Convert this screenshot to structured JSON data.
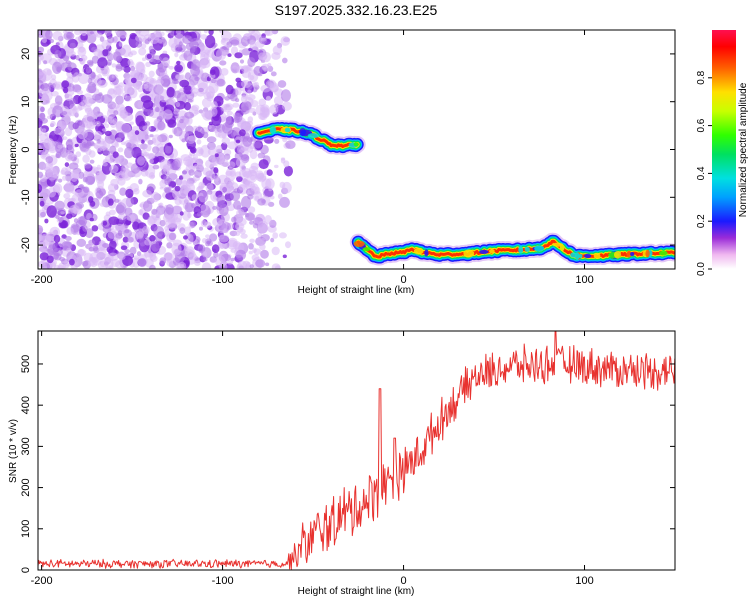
{
  "figure_title": "S197.2025.332.16.23.E25",
  "colors": {
    "speckle": "#8a3ddd",
    "snr_line": "#e8322f",
    "axis": "#000000",
    "background": "#ffffff"
  },
  "chart_data": [
    {
      "type": "heatmap",
      "name": "spectrogram",
      "xlabel": "Height of straight line (km)",
      "ylabel": "Frequency (Hz)",
      "xlim": [
        -202,
        150
      ],
      "ylim": [
        -25,
        25
      ],
      "xticks": [
        -200,
        -100,
        0,
        100
      ],
      "yticks": [
        -20,
        -10,
        0,
        10,
        20
      ],
      "noise_region_x": [
        -202,
        -65
      ],
      "tracks": [
        {
          "name": "upper-track",
          "points": [
            [
              -80,
              3.5
            ],
            [
              -70,
              4.2
            ],
            [
              -60,
              4.0
            ],
            [
              -52,
              3.3
            ],
            [
              -46,
              2.2
            ],
            [
              -40,
              1.0
            ],
            [
              -34,
              0.8
            ],
            [
              -28,
              0.9
            ],
            [
              -25,
              1.2
            ]
          ]
        },
        {
          "name": "lower-track",
          "points": [
            [
              -25,
              -19.6
            ],
            [
              -20,
              -21.0
            ],
            [
              -15,
              -22.5
            ],
            [
              -8,
              -21.8
            ],
            [
              0,
              -21.5
            ],
            [
              5,
              -20.8
            ],
            [
              10,
              -21.5
            ],
            [
              20,
              -22.0
            ],
            [
              35,
              -21.8
            ],
            [
              50,
              -21.2
            ],
            [
              65,
              -21.0
            ],
            [
              75,
              -20.7
            ],
            [
              83,
              -19.3
            ],
            [
              90,
              -21.2
            ],
            [
              95,
              -22.3
            ],
            [
              110,
              -22.2
            ],
            [
              130,
              -21.8
            ],
            [
              150,
              -21.6
            ]
          ]
        }
      ],
      "colorbar": {
        "label": "Normalized spectral amplitude",
        "range": [
          0.0,
          1.0
        ],
        "ticks": [
          0.0,
          0.2,
          0.4,
          0.6,
          0.8
        ]
      }
    },
    {
      "type": "line",
      "name": "snr",
      "xlabel": "Height of straight line (km)",
      "ylabel": "SNR (10 * v/v)",
      "xlim": [
        -202,
        150
      ],
      "ylim": [
        0,
        580
      ],
      "xticks": [
        -200,
        -100,
        0,
        100
      ],
      "yticks": [
        0,
        100,
        200,
        300,
        400,
        500
      ],
      "trend": [
        [
          -202,
          15
        ],
        [
          -65,
          15
        ],
        [
          -55,
          60
        ],
        [
          -45,
          100
        ],
        [
          -30,
          140
        ],
        [
          -20,
          170
        ],
        [
          -10,
          210
        ],
        [
          0,
          240
        ],
        [
          10,
          290
        ],
        [
          20,
          360
        ],
        [
          30,
          420
        ],
        [
          40,
          470
        ],
        [
          60,
          495
        ],
        [
          90,
          500
        ],
        [
          120,
          485
        ],
        [
          150,
          485
        ]
      ],
      "noise_amplitude": [
        [
          -202,
          10
        ],
        [
          -65,
          10
        ],
        [
          -55,
          60
        ],
        [
          -30,
          70
        ],
        [
          0,
          55
        ],
        [
          30,
          45
        ],
        [
          60,
          45
        ],
        [
          100,
          45
        ],
        [
          150,
          45
        ]
      ],
      "spikes": [
        [
          -13,
          440
        ],
        [
          -5,
          320
        ],
        [
          84,
          580
        ]
      ],
      "color": "#e8322f"
    }
  ]
}
